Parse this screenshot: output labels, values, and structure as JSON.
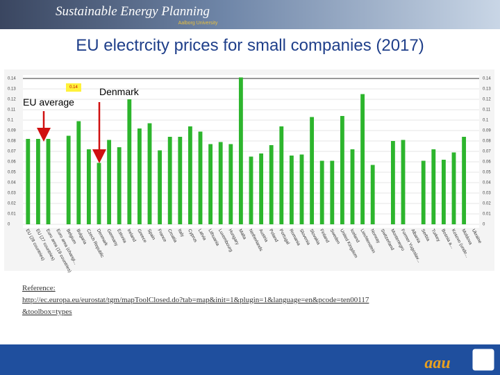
{
  "header": {
    "title": "Sustainable Energy Planning",
    "subtitle": "Aalborg University"
  },
  "slide_title": "EU electrcity prices for small companies (2017)",
  "chart_data": {
    "type": "bar",
    "categories": [
      "EU (28 countries)",
      "EU (27 countries)",
      "Euro area (19 countries)",
      "Euro area (changi...",
      "Belgium",
      "Bulgaria",
      "Czech Republic",
      "Denmark",
      "Germany",
      "Estonia",
      "Ireland",
      "Greece",
      "Spain",
      "France",
      "Croatia",
      "Italy",
      "Cyprus",
      "Latvia",
      "Lithuania",
      "Luxembourg",
      "Hungary",
      "Malta",
      "Netherlands",
      "Austria",
      "Poland",
      "Portugal",
      "Romania",
      "Slovenia",
      "Slovakia",
      "Finland",
      "Sweden",
      "United Kingdom",
      "Iceland",
      "Liechtenstein",
      "Norway",
      "Switzerland",
      "Montenegro",
      "Former Yugoslav...",
      "Albania",
      "Serbia",
      "Turkey",
      "Bosnia a...",
      "Kosovo (unde...",
      "Moldova",
      "Ukraine"
    ],
    "values": [
      0.082,
      0.082,
      0.082,
      null,
      0.085,
      0.099,
      0.072,
      0.059,
      0.081,
      0.074,
      0.12,
      0.092,
      0.097,
      0.071,
      0.084,
      0.084,
      0.094,
      0.089,
      0.077,
      0.079,
      0.077,
      0.141,
      0.065,
      0.068,
      0.076,
      0.094,
      0.066,
      0.067,
      0.103,
      0.061,
      0.061,
      0.104,
      0.072,
      0.125,
      0.057,
      null,
      0.08,
      0.081,
      null,
      0.061,
      0.072,
      0.062,
      0.069,
      0.084,
      null
    ],
    "color": "#2db52d",
    "ylim": [
      0,
      0.14
    ],
    "yticks": [
      0,
      0.01,
      0.02,
      0.03,
      0.04,
      0.05,
      0.06,
      0.07,
      0.08,
      0.09,
      0.1,
      0.11,
      0.12,
      0.13,
      0.14
    ],
    "grid": true,
    "annotations": [
      "EU average",
      "Denmark"
    ],
    "tooltip": "0.14"
  },
  "reference": {
    "label": "Reference:",
    "url_lines": [
      "http://ec.europa.eu/eurostat/tgm/mapToolClosed.do?tab=map&init=1&plugin=1&language=en&pcode=ten00117",
      "&toolbox=types"
    ]
  },
  "logo": "aau"
}
